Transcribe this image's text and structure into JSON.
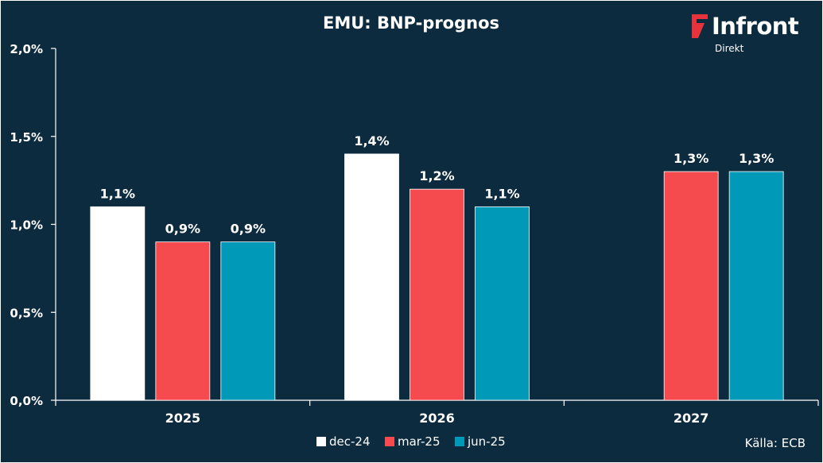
{
  "chart_data": {
    "type": "bar",
    "title": "EMU: BNP-prognos",
    "categories": [
      "2025",
      "2026",
      "2027"
    ],
    "series": [
      {
        "name": "dec-24",
        "color": "#ffffff",
        "values": [
          1.1,
          1.4,
          null
        ],
        "labels": [
          "1,1%",
          "1,4%",
          ""
        ]
      },
      {
        "name": "mar-25",
        "color": "#f54b4f",
        "values": [
          0.9,
          1.2,
          1.3
        ],
        "labels": [
          "0,9%",
          "1,2%",
          "1,3%"
        ]
      },
      {
        "name": "jun-25",
        "color": "#0099b8",
        "values": [
          0.9,
          1.1,
          1.3
        ],
        "labels": [
          "0,9%",
          "1,1%",
          "1,3%"
        ]
      }
    ],
    "ylim": [
      0,
      2.0
    ],
    "yticks": [
      0,
      0.5,
      1.0,
      1.5,
      2.0
    ],
    "ytick_labels": [
      "0,0%",
      "0,5%",
      "1,0%",
      "1,5%",
      "2,0%"
    ],
    "legend_position": "bottom-center",
    "grid": false
  },
  "logo": {
    "wordmark": "Infront",
    "sub": "Direkt",
    "brand_color": "#e8323c"
  },
  "source": "Källa:  ECB"
}
